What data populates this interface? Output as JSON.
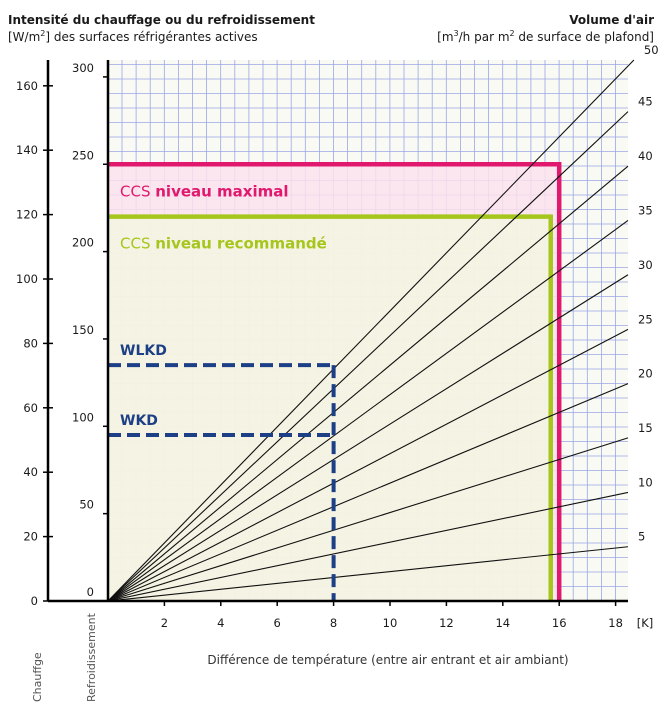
{
  "header": {
    "left_title": "Intensité du chauffage ou du refroidissement",
    "left_unit_pre": "[W/m",
    "left_unit_sup": "2",
    "left_unit_post": "] des surfaces réfrigérantes actives",
    "right_title": "Volume d'air",
    "right_unit_pre": "[m",
    "right_unit_sup1": "3",
    "right_unit_mid": "/h par m",
    "right_unit_sup2": "2",
    "right_unit_post": " de surface de plafond]"
  },
  "colors": {
    "grid": "#9aa6e6",
    "plot_bg": "#f9faf3",
    "max_level": "#e0196e",
    "max_fill": "#fbe1ec",
    "rec_level": "#a6c61d",
    "rec_fill": "#f3f6e1",
    "products": "#1c3f86",
    "lines": "#111111"
  },
  "chart_data": {
    "type": "line",
    "xlabel": "Différence de température (entre air entrant et air ambiant)",
    "x_unit": "[K]",
    "x_ticks": [
      "2",
      "4",
      "6",
      "8",
      "10",
      "12",
      "14",
      "16",
      "18"
    ],
    "xlim": [
      0,
      18.6
    ],
    "y_cooling_label": "Refroidissement",
    "y_cooling_ticks": [
      "0",
      "50",
      "100",
      "150",
      "200",
      "250",
      "300"
    ],
    "y_cooling_range": [
      0,
      300
    ],
    "y_heating_label": "Chauffge",
    "y_heating_ticks": [
      "0",
      "20",
      "40",
      "60",
      "80",
      "100",
      "120",
      "140",
      "160"
    ],
    "y_heating_range": [
      0,
      160
    ],
    "series": [
      {
        "name": "5",
        "slope": 1.67
      },
      {
        "name": "10",
        "slope": 3.34
      },
      {
        "name": "15",
        "slope": 5.02
      },
      {
        "name": "20",
        "slope": 6.69
      },
      {
        "name": "25",
        "slope": 8.36
      },
      {
        "name": "30",
        "slope": 10.04
      },
      {
        "name": "35",
        "slope": 11.71
      },
      {
        "name": "40",
        "slope": 13.38
      },
      {
        "name": "45",
        "slope": 15.06
      },
      {
        "name": "50",
        "slope": 16.73
      }
    ],
    "levels": [
      {
        "key": "max",
        "prefix": "CCS",
        "label": "niveau maximal",
        "y_cooling": 250,
        "x_limit": 16
      },
      {
        "key": "rec",
        "prefix": "CCS",
        "label": "niveau recommandé",
        "y_cooling": 220,
        "x_limit": 15.7
      }
    ],
    "products": [
      {
        "label": "WLKD",
        "y_cooling": 135,
        "x": 8
      },
      {
        "label": "WKD",
        "y_cooling": 95,
        "x": 8
      }
    ]
  }
}
